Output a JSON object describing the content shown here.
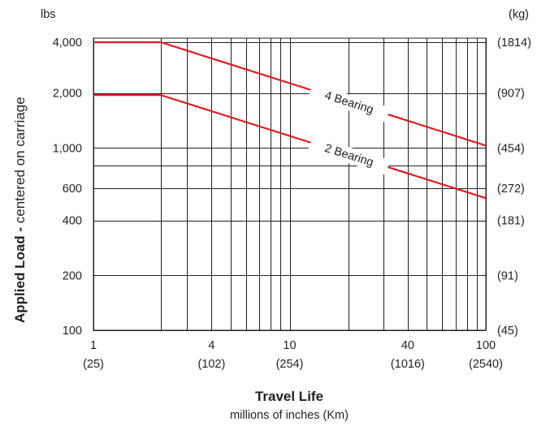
{
  "chart_data": {
    "type": "line",
    "x_scale": "log",
    "y_scale": "log",
    "x": [
      1,
      2.2,
      100
    ],
    "xlim": [
      1,
      100
    ],
    "ylim": [
      100,
      4000
    ],
    "grid": true,
    "x_tick_labels": [
      "1",
      "4",
      "10",
      "40",
      "100"
    ],
    "x_tick_values": [
      1,
      4,
      10,
      40,
      100
    ],
    "x_tick_labels_metric": [
      "(25)",
      "(102)",
      "(254)",
      "(1016)",
      "(2540)"
    ],
    "x_grid_values": [
      1,
      2.2,
      3,
      4,
      5,
      6,
      7,
      8,
      9,
      10,
      20,
      30,
      40,
      50,
      60,
      70,
      80,
      90,
      100
    ],
    "y_tick_labels": [
      "100",
      "200",
      "400",
      "600",
      "1,000",
      "2,000",
      "4,000"
    ],
    "y_tick_values": [
      100,
      200,
      400,
      600,
      1000,
      2000,
      4000
    ],
    "y_tick_labels_metric": [
      "(45)",
      "(91)",
      "(181)",
      "(272)",
      "(454)",
      "(907)",
      "(1814)"
    ],
    "y_grid_values": [
      100,
      200,
      400,
      600,
      800,
      1000,
      2000,
      3800
    ],
    "y_unit_left": "lbs",
    "y_unit_right": "(kg)",
    "ylabel_bold": "Applied Load -",
    "ylabel_rest": " centered on carriage",
    "xlabel": "Travel Life",
    "xlabel_sub": "millions of inches  (Km)",
    "series": [
      {
        "name": "4 Bearing",
        "values": [
          3800,
          3800,
          1030
        ],
        "color": "#e31b23"
      },
      {
        "name": "2 Bearing",
        "values": [
          1950,
          1950,
          530
        ],
        "color": "#e31b23"
      }
    ]
  }
}
